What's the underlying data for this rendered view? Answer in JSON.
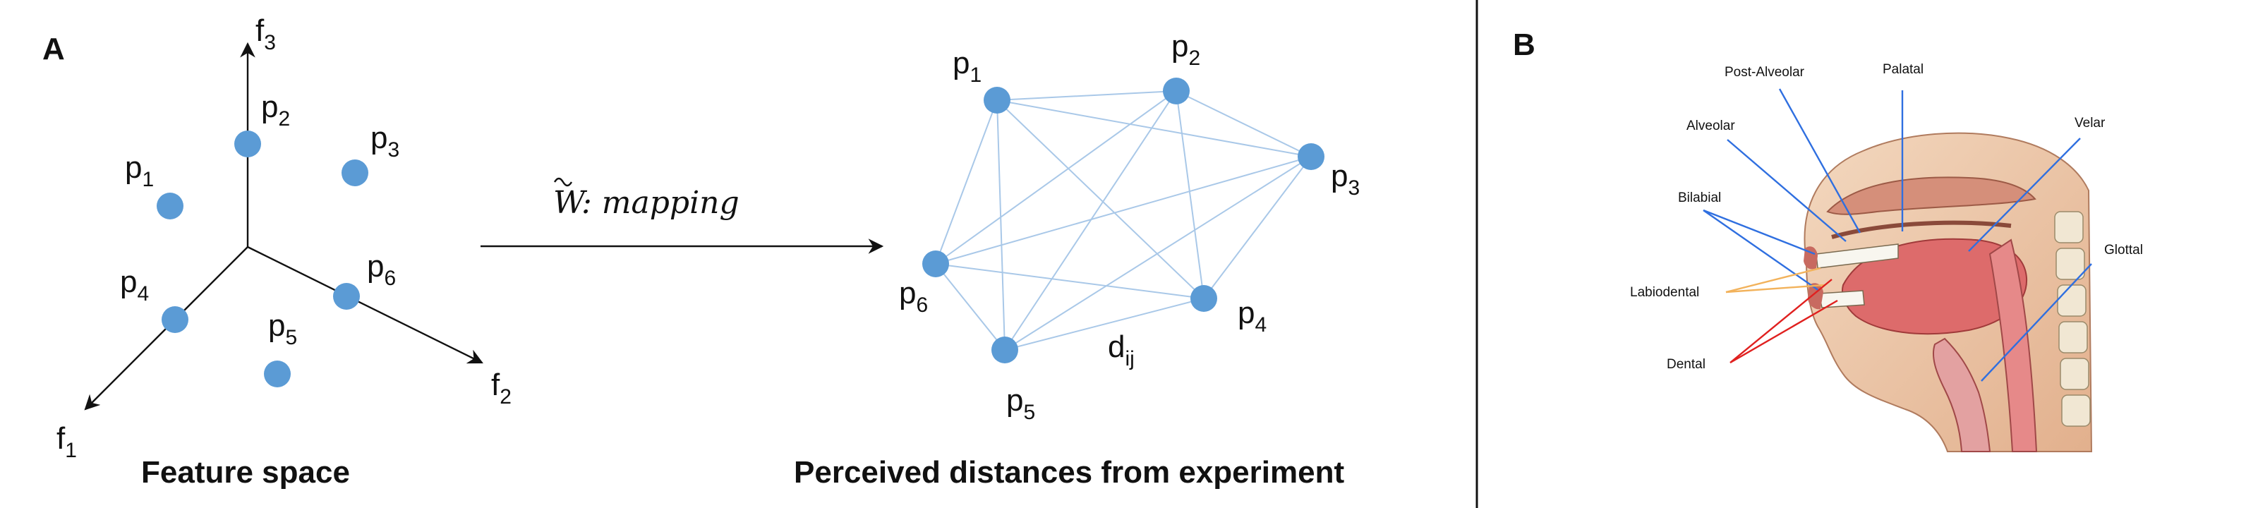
{
  "panel_a": {
    "label": "A",
    "feature_space": {
      "caption": "Feature space",
      "axes": [
        {
          "base": "f",
          "sub": "3"
        },
        {
          "base": "f",
          "sub": "2"
        },
        {
          "base": "f",
          "sub": "1"
        }
      ],
      "points": [
        {
          "base": "p",
          "sub": "1"
        },
        {
          "base": "p",
          "sub": "2"
        },
        {
          "base": "p",
          "sub": "3"
        },
        {
          "base": "p",
          "sub": "4"
        },
        {
          "base": "p",
          "sub": "5"
        },
        {
          "base": "p",
          "sub": "6"
        }
      ]
    },
    "mapping": {
      "symbol": "W",
      "text": ": mapping"
    },
    "perceived": {
      "caption": "Perceived distances from experiment",
      "points": [
        {
          "base": "p",
          "sub": "1"
        },
        {
          "base": "p",
          "sub": "2"
        },
        {
          "base": "p",
          "sub": "3"
        },
        {
          "base": "p",
          "sub": "4"
        },
        {
          "base": "p",
          "sub": "5"
        },
        {
          "base": "p",
          "sub": "6"
        }
      ],
      "distance_label": {
        "base": "d",
        "sub": "ij"
      }
    }
  },
  "panel_b": {
    "label": "B",
    "places_of_articulation": [
      "Post-Alveolar",
      "Palatal",
      "Alveolar",
      "Velar",
      "Bilabial",
      "Glottal",
      "Labiodental",
      "Dental"
    ]
  },
  "colors": {
    "node": "#5b9bd5",
    "edge": "#a9c8e8",
    "blue_pointer": "#2f6fe0",
    "labiodental_pointer": "#f2b25b",
    "dental_pointer": "#e0201f"
  }
}
